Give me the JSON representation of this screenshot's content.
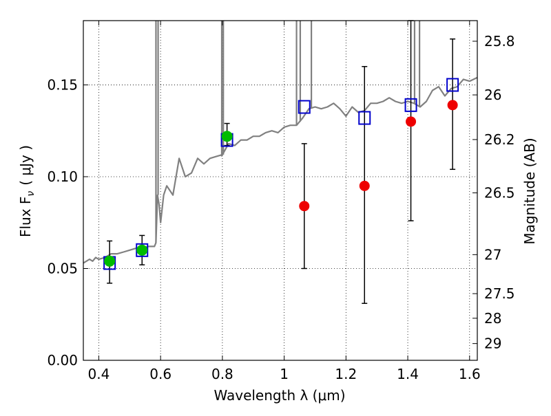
{
  "chart_data": {
    "type": "scatter",
    "xlabel": "Wavelength  λ (μm)",
    "ylabel": "Flux  F",
    "ylabel_sub": "ν",
    "ylabel_unit": "( μJy )",
    "y2label": "Magnitude (AB)",
    "xlim": [
      0.35,
      1.625
    ],
    "ylim": [
      0.0,
      0.185
    ],
    "x_ticks": [
      0.4,
      0.6,
      0.8,
      1.0,
      1.2,
      1.4,
      1.6
    ],
    "x_tick_labels": [
      "0.4",
      "0.6",
      "0.8",
      "1",
      "1.2",
      "1.4",
      "1.6"
    ],
    "y_ticks": [
      0.0,
      0.05,
      0.1,
      0.15
    ],
    "y_tick_labels": [
      "0.00",
      "0.05",
      "0.10",
      "0.15"
    ],
    "y2_tick_labels": [
      "25.8",
      "26",
      "26.2",
      "26.5",
      "27",
      "27.5",
      "28",
      "29"
    ],
    "grid": true,
    "colors": {
      "spectrum": "#808080",
      "model_points": "#0000cc",
      "measured_green": "#00bb00",
      "measured_red": "#ee0000",
      "errorbar": "#000000"
    },
    "series": [
      {
        "marker": "line",
        "x": [
          0.35,
          0.37,
          0.38,
          0.39,
          0.4,
          0.42,
          0.44,
          0.46,
          0.48,
          0.5,
          0.52,
          0.54,
          0.56,
          0.58,
          0.585,
          0.59,
          0.595,
          0.6,
          0.61,
          0.62,
          0.64,
          0.66,
          0.68,
          0.7,
          0.72,
          0.74,
          0.76,
          0.78,
          0.8,
          0.82,
          0.84,
          0.86,
          0.88,
          0.9,
          0.92,
          0.94,
          0.96,
          0.98,
          1.0,
          1.02,
          1.04,
          1.06,
          1.08,
          1.1,
          1.12,
          1.14,
          1.16,
          1.18,
          1.2,
          1.22,
          1.24,
          1.26,
          1.28,
          1.3,
          1.32,
          1.34,
          1.36,
          1.38,
          1.4,
          1.42,
          1.44,
          1.46,
          1.48,
          1.5,
          1.52,
          1.54,
          1.56,
          1.58,
          1.6,
          1.625
        ],
        "y": [
          0.053,
          0.055,
          0.054,
          0.056,
          0.055,
          0.056,
          0.058,
          0.058,
          0.059,
          0.06,
          0.061,
          0.061,
          0.062,
          0.062,
          0.064,
          0.09,
          0.085,
          0.075,
          0.09,
          0.095,
          0.09,
          0.11,
          0.1,
          0.102,
          0.11,
          0.107,
          0.11,
          0.111,
          0.112,
          0.118,
          0.117,
          0.12,
          0.12,
          0.122,
          0.122,
          0.124,
          0.125,
          0.124,
          0.127,
          0.128,
          0.128,
          0.132,
          0.137,
          0.138,
          0.137,
          0.138,
          0.14,
          0.137,
          0.133,
          0.138,
          0.135,
          0.136,
          0.14,
          0.14,
          0.141,
          0.143,
          0.141,
          0.14,
          0.141,
          0.14,
          0.138,
          0.141,
          0.147,
          0.149,
          0.144,
          0.148,
          0.149,
          0.153,
          0.152,
          0.154
        ]
      },
      {
        "marker": "open-square",
        "x": [
          0.435,
          0.54,
          0.815,
          1.065,
          1.26,
          1.41,
          1.545
        ],
        "y": [
          0.053,
          0.06,
          0.12,
          0.138,
          0.132,
          0.139,
          0.15
        ]
      },
      {
        "marker": "filled-circle",
        "x": [
          0.435,
          0.54,
          0.815
        ],
        "y": [
          0.054,
          0.06,
          0.122
        ],
        "yerr_low": [
          0.042,
          0.052,
          0.117
        ],
        "yerr_high": [
          0.065,
          0.068,
          0.129
        ]
      },
      {
        "marker": "filled-circle",
        "x": [
          1.065,
          1.26,
          1.41,
          1.545
        ],
        "y": [
          0.084,
          0.095,
          0.13,
          0.139
        ],
        "yerr_low": [
          0.05,
          0.031,
          0.076,
          0.104
        ],
        "yerr_high": [
          0.118,
          0.16,
          0.185,
          0.175
        ]
      }
    ]
  }
}
